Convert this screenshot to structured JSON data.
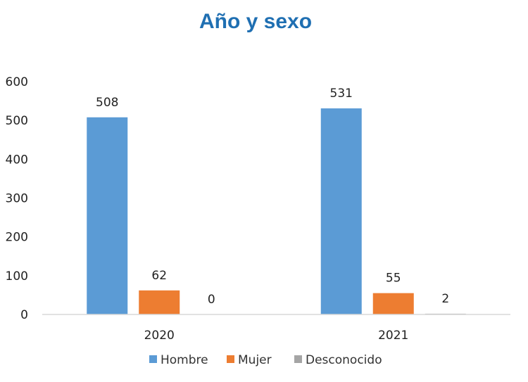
{
  "chart_data": {
    "type": "bar",
    "title": "Año y sexo",
    "categories": [
      "2020",
      "2021"
    ],
    "series": [
      {
        "name": "Hombre",
        "values": [
          508,
          531
        ],
        "color": "#5b9bd5"
      },
      {
        "name": "Mujer",
        "values": [
          62,
          55
        ],
        "color": "#ed7d31"
      },
      {
        "name": "Desconocido",
        "values": [
          0,
          2
        ],
        "color": "#a5a5a5"
      }
    ],
    "ylim": [
      0,
      600
    ],
    "yticks": [
      "0",
      "100",
      "200",
      "300",
      "400",
      "500",
      "600"
    ],
    "grid": false,
    "legend_position": "bottom",
    "axis_color": "#d9d9d9"
  }
}
